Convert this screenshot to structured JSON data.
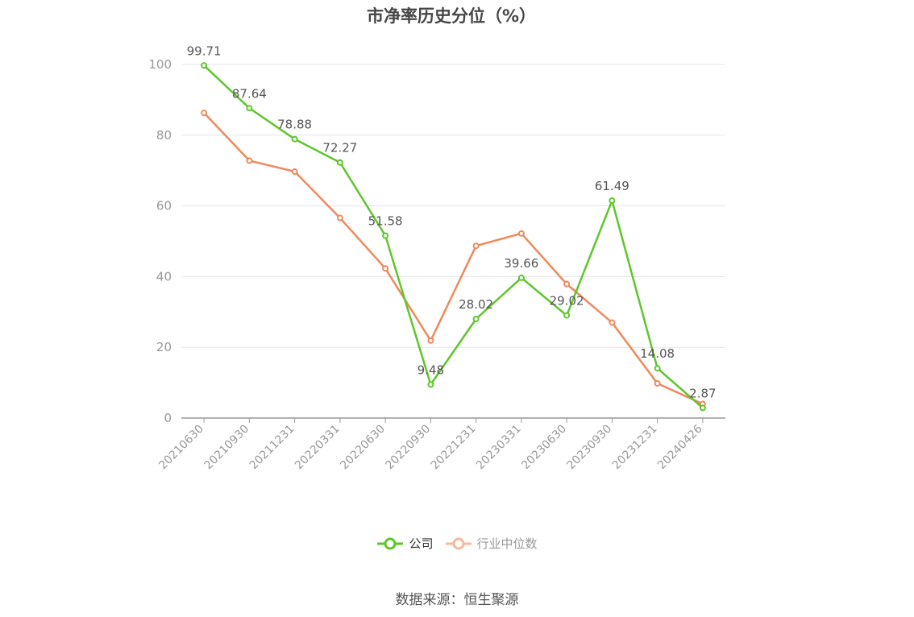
{
  "chart_data": {
    "type": "line",
    "title": "市净率历史分位（%）",
    "categories": [
      "20210630",
      "20210930",
      "20211231",
      "20220331",
      "20220630",
      "20220930",
      "20221231",
      "20230331",
      "20230630",
      "20230930",
      "20231231",
      "20240426"
    ],
    "series": [
      {
        "name": "公司",
        "color": "#5ec62b",
        "values": [
          99.71,
          87.64,
          78.88,
          72.27,
          51.58,
          9.48,
          28.02,
          39.66,
          29.02,
          61.49,
          14.08,
          2.87
        ],
        "labels": [
          "99.71",
          "87.64",
          "78.88",
          "72.27",
          "51.58",
          "9.48",
          "28.02",
          "39.66",
          "29.02",
          "61.49",
          "14.08",
          "2.87"
        ]
      },
      {
        "name": "行业中位数",
        "color": "#f0895b",
        "legend_color": "#f7b89c",
        "values": [
          86.3,
          72.8,
          69.7,
          56.6,
          42.3,
          21.9,
          48.7,
          52.2,
          37.9,
          27.0,
          9.8,
          4.0
        ]
      }
    ],
    "ylim": [
      0,
      100
    ],
    "yticks": [
      0,
      20,
      40,
      60,
      80,
      100
    ],
    "grid": true,
    "legend_position": "bottom"
  },
  "source": "数据来源：恒生聚源"
}
